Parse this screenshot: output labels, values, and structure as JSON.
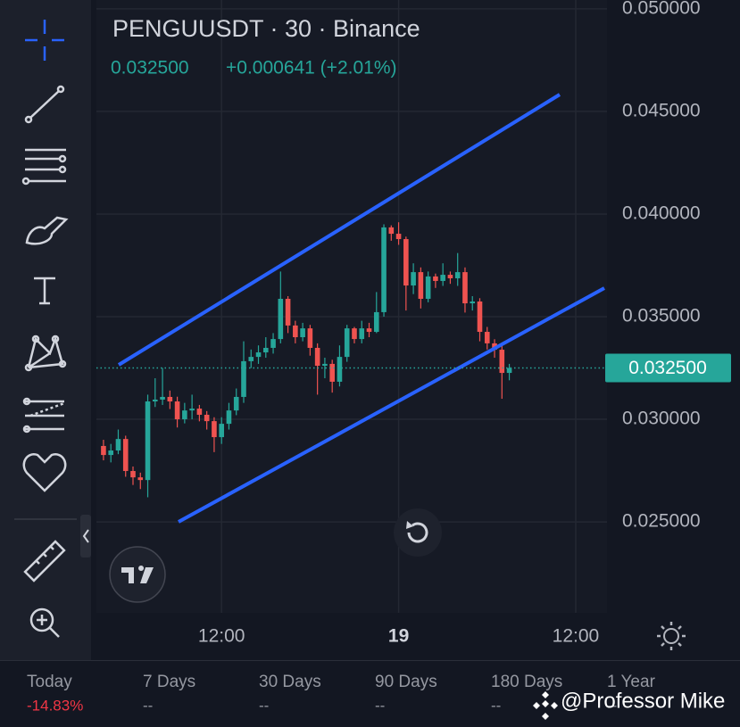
{
  "chart_data": {
    "type": "candlestick",
    "title": "PENGUUSDT · 30 · Binance",
    "last_price": "0.032500",
    "change": "+0.000641 (+2.01%)",
    "up_color": "#26a69a",
    "down_color": "#ef5350",
    "xlim": [
      3.52,
      38.12
    ],
    "xticks": [
      {
        "value": 12,
        "label": "12:00"
      },
      {
        "value": 24,
        "label": "19"
      },
      {
        "value": 36,
        "label": "12:00"
      }
    ],
    "ylim": [
      0.02057,
      0.05043
    ],
    "yticks": [
      {
        "value": 0.025,
        "label": "0.025000"
      },
      {
        "value": 0.03,
        "label": "0.030000"
      },
      {
        "value": 0.035,
        "label": "0.035000"
      },
      {
        "value": 0.04,
        "label": "0.040000"
      },
      {
        "value": 0.045,
        "label": "0.045000"
      },
      {
        "value": 0.05,
        "label": "0.050000"
      }
    ],
    "grid": true,
    "x": [
      4,
      4.5,
      5,
      5.5,
      6,
      6.5,
      7,
      7.5,
      8,
      8.5,
      9,
      9.5,
      10,
      10.5,
      11,
      11.5,
      12,
      12.5,
      13,
      13.5,
      14,
      14.5,
      15,
      15.5,
      16,
      16.5,
      17,
      17.5,
      18,
      18.5,
      19,
      19.5,
      20,
      20.5,
      21,
      21.5,
      22,
      22.5,
      23,
      23.5,
      24,
      24.5,
      25,
      25.5,
      26,
      26.5,
      27,
      27.5,
      28,
      28.5,
      29,
      29.5,
      30,
      30.5,
      31,
      31.5
    ],
    "open": [
      0.0287,
      0.02826,
      0.02848,
      0.02904,
      0.02748,
      0.02717,
      0.02704,
      0.03087,
      0.03096,
      0.03109,
      0.03087,
      0.03,
      0.03043,
      0.03052,
      0.03022,
      0.02991,
      0.02913,
      0.02978,
      0.03043,
      0.03109,
      0.03283,
      0.03304,
      0.03326,
      0.03348,
      0.03391,
      0.03587,
      0.03457,
      0.034,
      0.03443,
      0.03348,
      0.03261,
      0.0327,
      0.03183,
      0.03304,
      0.03443,
      0.03391,
      0.03443,
      0.03426,
      0.03522,
      0.03935,
      0.03904,
      0.03878,
      0.03652,
      0.03717,
      0.03587,
      0.03696,
      0.03674,
      0.03704,
      0.03687,
      0.03717,
      0.03565,
      0.03574,
      0.03426,
      0.0337,
      0.03339,
      0.03226
    ],
    "high": [
      0.029,
      0.0288,
      0.0295,
      0.0292,
      0.0277,
      0.0274,
      0.0312,
      0.032,
      0.0325,
      0.0314,
      0.0311,
      0.0308,
      0.0312,
      0.0307,
      0.0304,
      0.0301,
      0.0301,
      0.0308,
      0.0315,
      0.0338,
      0.0334,
      0.0336,
      0.034,
      0.0342,
      0.0372,
      0.036,
      0.0348,
      0.0347,
      0.0346,
      0.0337,
      0.033,
      0.0329,
      0.0336,
      0.0346,
      0.0345,
      0.0348,
      0.0347,
      0.0362,
      0.0395,
      0.03945,
      0.0396,
      0.0389,
      0.0376,
      0.0374,
      0.0372,
      0.0371,
      0.0376,
      0.0372,
      0.0381,
      0.0374,
      0.036,
      0.0359,
      0.0345,
      0.0339,
      0.0336,
      0.0327
    ],
    "low": [
      0.028,
      0.0279,
      0.0283,
      0.0272,
      0.0268,
      0.0266,
      0.0262,
      0.0306,
      0.0307,
      0.0305,
      0.0296,
      0.0298,
      0.03,
      0.0299,
      0.0295,
      0.0284,
      0.0288,
      0.0295,
      0.0302,
      0.0308,
      0.0325,
      0.0327,
      0.033,
      0.0332,
      0.0337,
      0.0342,
      0.0337,
      0.0338,
      0.0331,
      0.0312,
      0.032,
      0.0313,
      0.0316,
      0.0328,
      0.0337,
      0.0337,
      0.034,
      0.0342,
      0.035,
      0.0387,
      0.0385,
      0.0353,
      0.0361,
      0.0354,
      0.0357,
      0.0364,
      0.0365,
      0.0366,
      0.0365,
      0.0352,
      0.0353,
      0.0338,
      0.0334,
      0.033,
      0.031,
      0.0319
    ],
    "close": [
      0.02826,
      0.02848,
      0.02904,
      0.02748,
      0.02717,
      0.02704,
      0.03087,
      0.03096,
      0.03109,
      0.03087,
      0.03,
      0.03043,
      0.03052,
      0.03022,
      0.02991,
      0.02913,
      0.02978,
      0.03043,
      0.03109,
      0.03283,
      0.03304,
      0.03326,
      0.03348,
      0.03391,
      0.03587,
      0.03457,
      0.034,
      0.03443,
      0.03348,
      0.03261,
      0.0327,
      0.03183,
      0.03304,
      0.03443,
      0.03391,
      0.03443,
      0.03426,
      0.03522,
      0.03935,
      0.03904,
      0.03878,
      0.03652,
      0.03717,
      0.03587,
      0.03696,
      0.03674,
      0.03704,
      0.03687,
      0.03717,
      0.03565,
      0.03574,
      0.03426,
      0.0337,
      0.03339,
      0.03226,
      0.0325
    ]
  },
  "footer": [
    {
      "label": "Today",
      "value": "-14.83%"
    },
    {
      "label": "7 Days",
      "value": "--"
    },
    {
      "label": "30 Days",
      "value": "--"
    },
    {
      "label": "90 Days",
      "value": "--"
    },
    {
      "label": "180 Days",
      "value": "--"
    },
    {
      "label": "1 Year",
      "value": "--"
    }
  ],
  "watermark": "@Professor Mike"
}
